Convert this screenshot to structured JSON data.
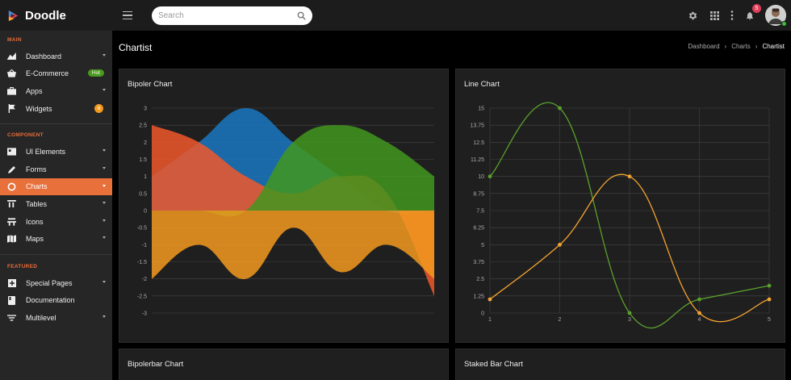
{
  "app": {
    "name": "Doodle"
  },
  "search": {
    "placeholder": "Search"
  },
  "notifications": {
    "count": "5"
  },
  "sidebar": {
    "sections": [
      {
        "title": "MAIN",
        "items": [
          {
            "label": "Dashboard",
            "icon": "dashboard-icon",
            "chevron": true
          },
          {
            "label": "E-Commerce",
            "icon": "basket-icon",
            "badge": "Hot"
          },
          {
            "label": "Apps",
            "icon": "apps-icon",
            "chevron": true
          },
          {
            "label": "Widgets",
            "icon": "flag-icon",
            "count": "6"
          }
        ]
      },
      {
        "title": "COMPONENT",
        "items": [
          {
            "label": "UI Elements",
            "icon": "ui-elements-icon",
            "chevron": true
          },
          {
            "label": "Forms",
            "icon": "pencil-icon",
            "chevron": true
          },
          {
            "label": "Charts",
            "icon": "chart-circle-icon",
            "chevron": true,
            "active": true
          },
          {
            "label": "Tables",
            "icon": "table-icon",
            "chevron": true
          },
          {
            "label": "Icons",
            "icon": "icons-icon",
            "chevron": true
          },
          {
            "label": "Maps",
            "icon": "map-icon",
            "chevron": true
          }
        ]
      },
      {
        "title": "FEATURED",
        "items": [
          {
            "label": "Special Pages",
            "icon": "plus-box-icon",
            "chevron": true
          },
          {
            "label": "Documentation",
            "icon": "book-icon"
          },
          {
            "label": "Multilevel",
            "icon": "filter-list-icon",
            "chevron": true
          }
        ]
      }
    ]
  },
  "page": {
    "title": "Chartist",
    "breadcrumb": [
      "Dashboard",
      "Charts",
      "Chartist"
    ]
  },
  "cards": {
    "bipolar_title": "Bipoler Chart",
    "line_title": "Line Chart",
    "bipolarbar_title": "Bipolerbar Chart",
    "stacked_title": "Staked Bar Chart"
  },
  "chart_data": [
    {
      "type": "area",
      "title": "Bipoler Chart",
      "ylim": [
        -3,
        3
      ],
      "yticks": [
        "3",
        "2.5",
        "2",
        "1.5",
        "1",
        "0.5",
        "0",
        "-0.5",
        "-1",
        "-1.5",
        "-2",
        "-2.5",
        "-3"
      ],
      "grid": true,
      "series": [
        {
          "color": "#1a78c2",
          "values": [
            1,
            2,
            3,
            2,
            1,
            0,
            0
          ]
        },
        {
          "color": "#f0572a",
          "values": [
            2.5,
            2,
            1,
            0.5,
            1,
            0.5,
            -2.5
          ]
        },
        {
          "color": "#42971e",
          "values": [
            0,
            0,
            0,
            2,
            2.5,
            2,
            1
          ]
        },
        {
          "color": "#f39a1e",
          "values": [
            -2,
            -1,
            -2,
            -0.5,
            -1.8,
            -1,
            -2
          ]
        }
      ]
    },
    {
      "type": "line",
      "title": "Line Chart",
      "x": [
        "1",
        "2",
        "3",
        "4",
        "5"
      ],
      "ylim": [
        0,
        15
      ],
      "yticks": [
        "15",
        "13.75",
        "12.5",
        "11.25",
        "10",
        "8.75",
        "7.5",
        "6.25",
        "5",
        "3.75",
        "2.5",
        "1.25",
        "0"
      ],
      "grid": true,
      "series": [
        {
          "color": "#5aa02c",
          "values": [
            10,
            15,
            0,
            1,
            2
          ]
        },
        {
          "color": "#f3a331",
          "values": [
            1,
            5,
            10,
            0,
            1
          ]
        }
      ]
    }
  ]
}
